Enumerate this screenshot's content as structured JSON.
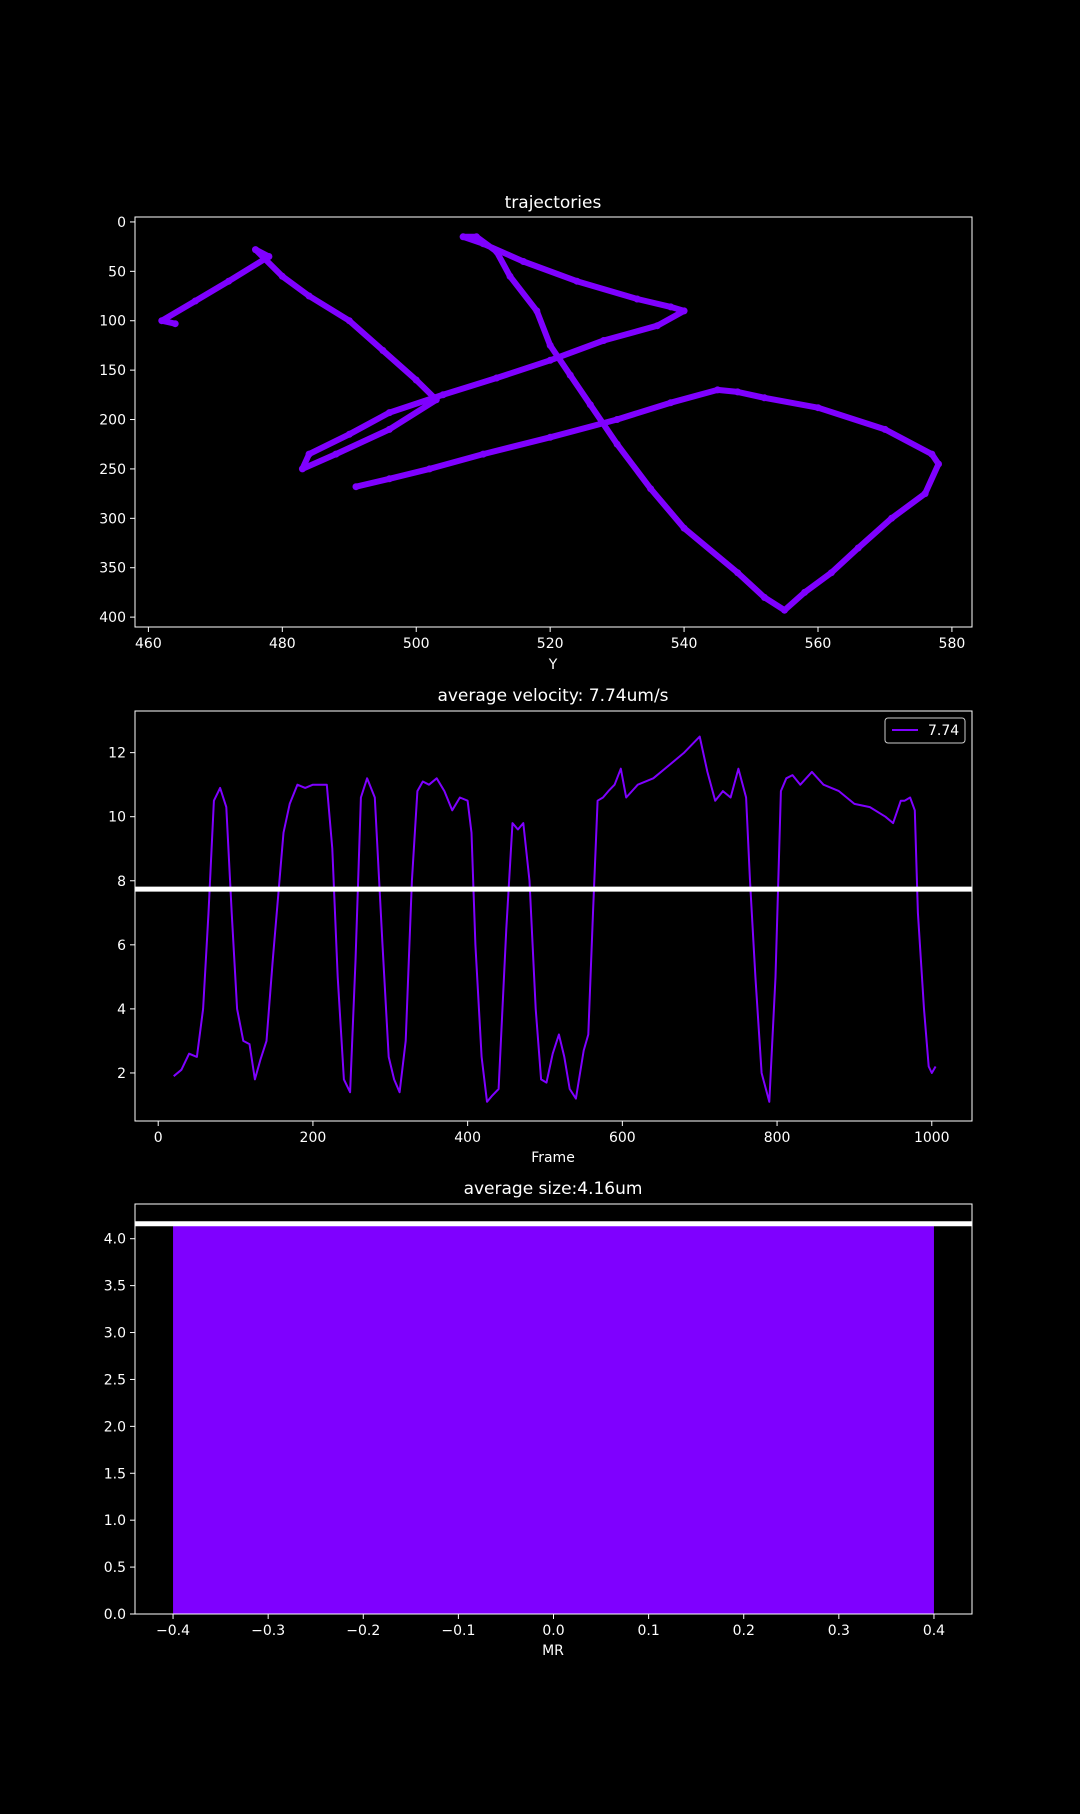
{
  "colors": {
    "background": "#000000",
    "foreground": "#ffffff",
    "series": "#7f00ff"
  },
  "chart_data": [
    {
      "type": "scatter",
      "title": "trajectories",
      "xlabel": "Y",
      "ylabel": "",
      "xlim": [
        458,
        583
      ],
      "ylim": [
        410,
        -5
      ],
      "y_inverted": true,
      "xticks": [
        460,
        480,
        500,
        520,
        540,
        560,
        580
      ],
      "yticks": [
        0,
        50,
        100,
        150,
        200,
        250,
        300,
        350,
        400
      ],
      "xtick_labels": [
        "460",
        "480",
        "500",
        "520",
        "540",
        "560",
        "580"
      ],
      "ytick_labels": [
        "0",
        "50",
        "100",
        "150",
        "200",
        "250",
        "300",
        "350",
        "400"
      ],
      "series": [
        {
          "x": [
            491,
            496,
            502,
            510,
            520,
            530,
            538,
            545,
            548,
            552,
            560,
            570,
            577,
            578,
            576,
            571,
            566,
            562,
            558,
            555,
            552,
            548,
            540,
            535,
            530,
            526,
            523,
            520,
            518,
            514,
            512,
            509,
            507,
            510,
            516,
            524,
            533,
            538,
            540,
            536,
            528,
            520,
            512,
            504,
            496,
            490,
            484,
            483,
            488,
            496,
            503,
            500,
            495,
            490,
            484,
            480,
            476,
            478,
            472,
            467,
            462,
            464
          ],
          "y": [
            268,
            260,
            250,
            235,
            218,
            200,
            183,
            170,
            172,
            178,
            188,
            210,
            235,
            245,
            275,
            300,
            330,
            355,
            375,
            393,
            380,
            355,
            310,
            270,
            225,
            185,
            155,
            125,
            90,
            55,
            30,
            15,
            15,
            22,
            40,
            60,
            78,
            86,
            90,
            105,
            120,
            140,
            158,
            175,
            193,
            215,
            235,
            250,
            235,
            210,
            180,
            160,
            130,
            100,
            75,
            55,
            28,
            35,
            60,
            80,
            100,
            103
          ]
        }
      ]
    },
    {
      "type": "line",
      "title": "average velocity: 7.74um/s",
      "xlabel": "Frame",
      "ylabel": "",
      "xlim": [
        -30,
        1052
      ],
      "ylim": [
        0.5,
        13.3
      ],
      "xticks": [
        0,
        200,
        400,
        600,
        800,
        1000
      ],
      "yticks": [
        2,
        4,
        6,
        8,
        10,
        12
      ],
      "xtick_labels": [
        "0",
        "200",
        "400",
        "600",
        "800",
        "1000"
      ],
      "ytick_labels": [
        "2",
        "4",
        "6",
        "8",
        "10",
        "12"
      ],
      "legend": {
        "position": "top-right",
        "entries": [
          "7.74"
        ]
      },
      "hline": 7.74,
      "series": [
        {
          "name": "7.74",
          "x": [
            20,
            30,
            40,
            50,
            58,
            65,
            72,
            80,
            88,
            95,
            102,
            110,
            118,
            125,
            132,
            140,
            148,
            155,
            162,
            170,
            180,
            190,
            200,
            210,
            218,
            225,
            232,
            240,
            248,
            255,
            262,
            270,
            280,
            290,
            298,
            305,
            312,
            320,
            328,
            335,
            342,
            350,
            360,
            370,
            380,
            390,
            400,
            405,
            410,
            418,
            425,
            432,
            440,
            450,
            458,
            465,
            472,
            480,
            488,
            495,
            502,
            510,
            518,
            525,
            532,
            540,
            550,
            556,
            562,
            568,
            575,
            582,
            590,
            598,
            605,
            620,
            640,
            660,
            680,
            700,
            710,
            720,
            730,
            740,
            750,
            760,
            765,
            772,
            780,
            790,
            798,
            805,
            812,
            820,
            830,
            845,
            860,
            880,
            900,
            920,
            940,
            950,
            960,
            965,
            972,
            978,
            982,
            990,
            996,
            1000,
            1005
          ],
          "y": [
            1.9,
            2.1,
            2.6,
            2.5,
            4,
            7,
            10.5,
            10.9,
            10.3,
            7,
            4,
            3,
            2.9,
            1.8,
            2.4,
            3,
            5.5,
            7.5,
            9.5,
            10.4,
            11,
            10.9,
            11,
            11,
            11,
            9,
            5,
            1.8,
            1.4,
            5.5,
            10.6,
            11.2,
            10.6,
            6,
            2.5,
            1.8,
            1.4,
            3,
            8,
            10.8,
            11.1,
            11,
            11.2,
            10.8,
            10.2,
            10.6,
            10.5,
            9.5,
            6,
            2.5,
            1.1,
            1.3,
            1.5,
            6.5,
            9.8,
            9.6,
            9.8,
            8,
            4,
            1.8,
            1.7,
            2.6,
            3.2,
            2.5,
            1.5,
            1.2,
            2.7,
            3.2,
            7,
            10.5,
            10.6,
            10.8,
            11,
            11.5,
            10.6,
            11,
            11.2,
            11.6,
            12,
            12.5,
            11.4,
            10.5,
            10.8,
            10.6,
            11.5,
            10.6,
            8,
            5,
            2,
            1.1,
            5,
            10.8,
            11.2,
            11.3,
            11,
            11.4,
            11,
            10.8,
            10.4,
            10.3,
            10,
            9.8,
            10.5,
            10.5,
            10.6,
            10.2,
            7,
            4,
            2.2,
            2,
            2.2
          ]
        }
      ]
    },
    {
      "type": "bar",
      "title": "average size:4.16um",
      "xlabel": "MR",
      "ylabel": "",
      "xlim": [
        -0.44,
        0.44
      ],
      "ylim": [
        0,
        4.37
      ],
      "xticks": [
        -0.4,
        -0.3,
        -0.2,
        -0.1,
        0.0,
        0.1,
        0.2,
        0.3,
        0.4
      ],
      "yticks": [
        0.0,
        0.5,
        1.0,
        1.5,
        2.0,
        2.5,
        3.0,
        3.5,
        4.0
      ],
      "xtick_labels": [
        "−0.4",
        "−0.3",
        "−0.2",
        "−0.1",
        "0.0",
        "0.1",
        "0.2",
        "0.3",
        "0.4"
      ],
      "ytick_labels": [
        "0.0",
        "0.5",
        "1.0",
        "1.5",
        "2.0",
        "2.5",
        "3.0",
        "3.5",
        "4.0"
      ],
      "hline": 4.16,
      "categories": [
        0
      ],
      "values": [
        4.16
      ],
      "bar_width": 0.8
    }
  ]
}
